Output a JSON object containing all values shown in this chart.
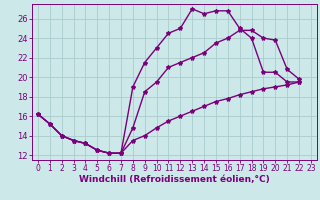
{
  "background_color": "#cce8e8",
  "line_color": "#7b007b",
  "grid_color": "#aacccc",
  "xlabel": "Windchill (Refroidissement éolien,°C)",
  "xlim": [
    -0.5,
    23.5
  ],
  "ylim": [
    11.5,
    27.5
  ],
  "xticks": [
    0,
    1,
    2,
    3,
    4,
    5,
    6,
    7,
    8,
    9,
    10,
    11,
    12,
    13,
    14,
    15,
    16,
    17,
    18,
    19,
    20,
    21,
    22,
    23
  ],
  "yticks": [
    12,
    14,
    16,
    18,
    20,
    22,
    24,
    26
  ],
  "line1_x": [
    0,
    1,
    2,
    3,
    4,
    5,
    6,
    7,
    8,
    9,
    10,
    11,
    12,
    13,
    14,
    15,
    16,
    17,
    18,
    19,
    20,
    21,
    22
  ],
  "line1_y": [
    16.2,
    15.2,
    14.0,
    13.5,
    13.2,
    12.5,
    12.2,
    12.2,
    19.0,
    21.5,
    23.0,
    24.5,
    25.0,
    27.0,
    26.5,
    26.8,
    26.8,
    25.0,
    24.0,
    20.5,
    20.5,
    19.5,
    19.5
  ],
  "line2_x": [
    0,
    1,
    2,
    3,
    4,
    5,
    6,
    7,
    8,
    9,
    10,
    11,
    12,
    13,
    14,
    15,
    16,
    17,
    18,
    19,
    20,
    21,
    22
  ],
  "line2_y": [
    16.2,
    15.2,
    14.0,
    13.5,
    13.2,
    12.5,
    12.2,
    12.2,
    14.8,
    18.5,
    19.5,
    21.0,
    21.5,
    22.0,
    22.5,
    23.5,
    24.0,
    24.8,
    24.8,
    24.0,
    23.8,
    20.8,
    19.8
  ],
  "line3_x": [
    0,
    1,
    2,
    3,
    4,
    5,
    6,
    7,
    8,
    9,
    10,
    11,
    12,
    13,
    14,
    15,
    16,
    17,
    18,
    19,
    20,
    21,
    22
  ],
  "line3_y": [
    16.2,
    15.2,
    14.0,
    13.5,
    13.2,
    12.5,
    12.2,
    12.2,
    13.5,
    14.0,
    14.8,
    15.5,
    16.0,
    16.5,
    17.0,
    17.5,
    17.8,
    18.2,
    18.5,
    18.8,
    19.0,
    19.2,
    19.5
  ],
  "marker": "*",
  "markersize": 3,
  "linewidth": 1.0,
  "tick_fontsize": 5.5,
  "label_fontsize": 6.5
}
